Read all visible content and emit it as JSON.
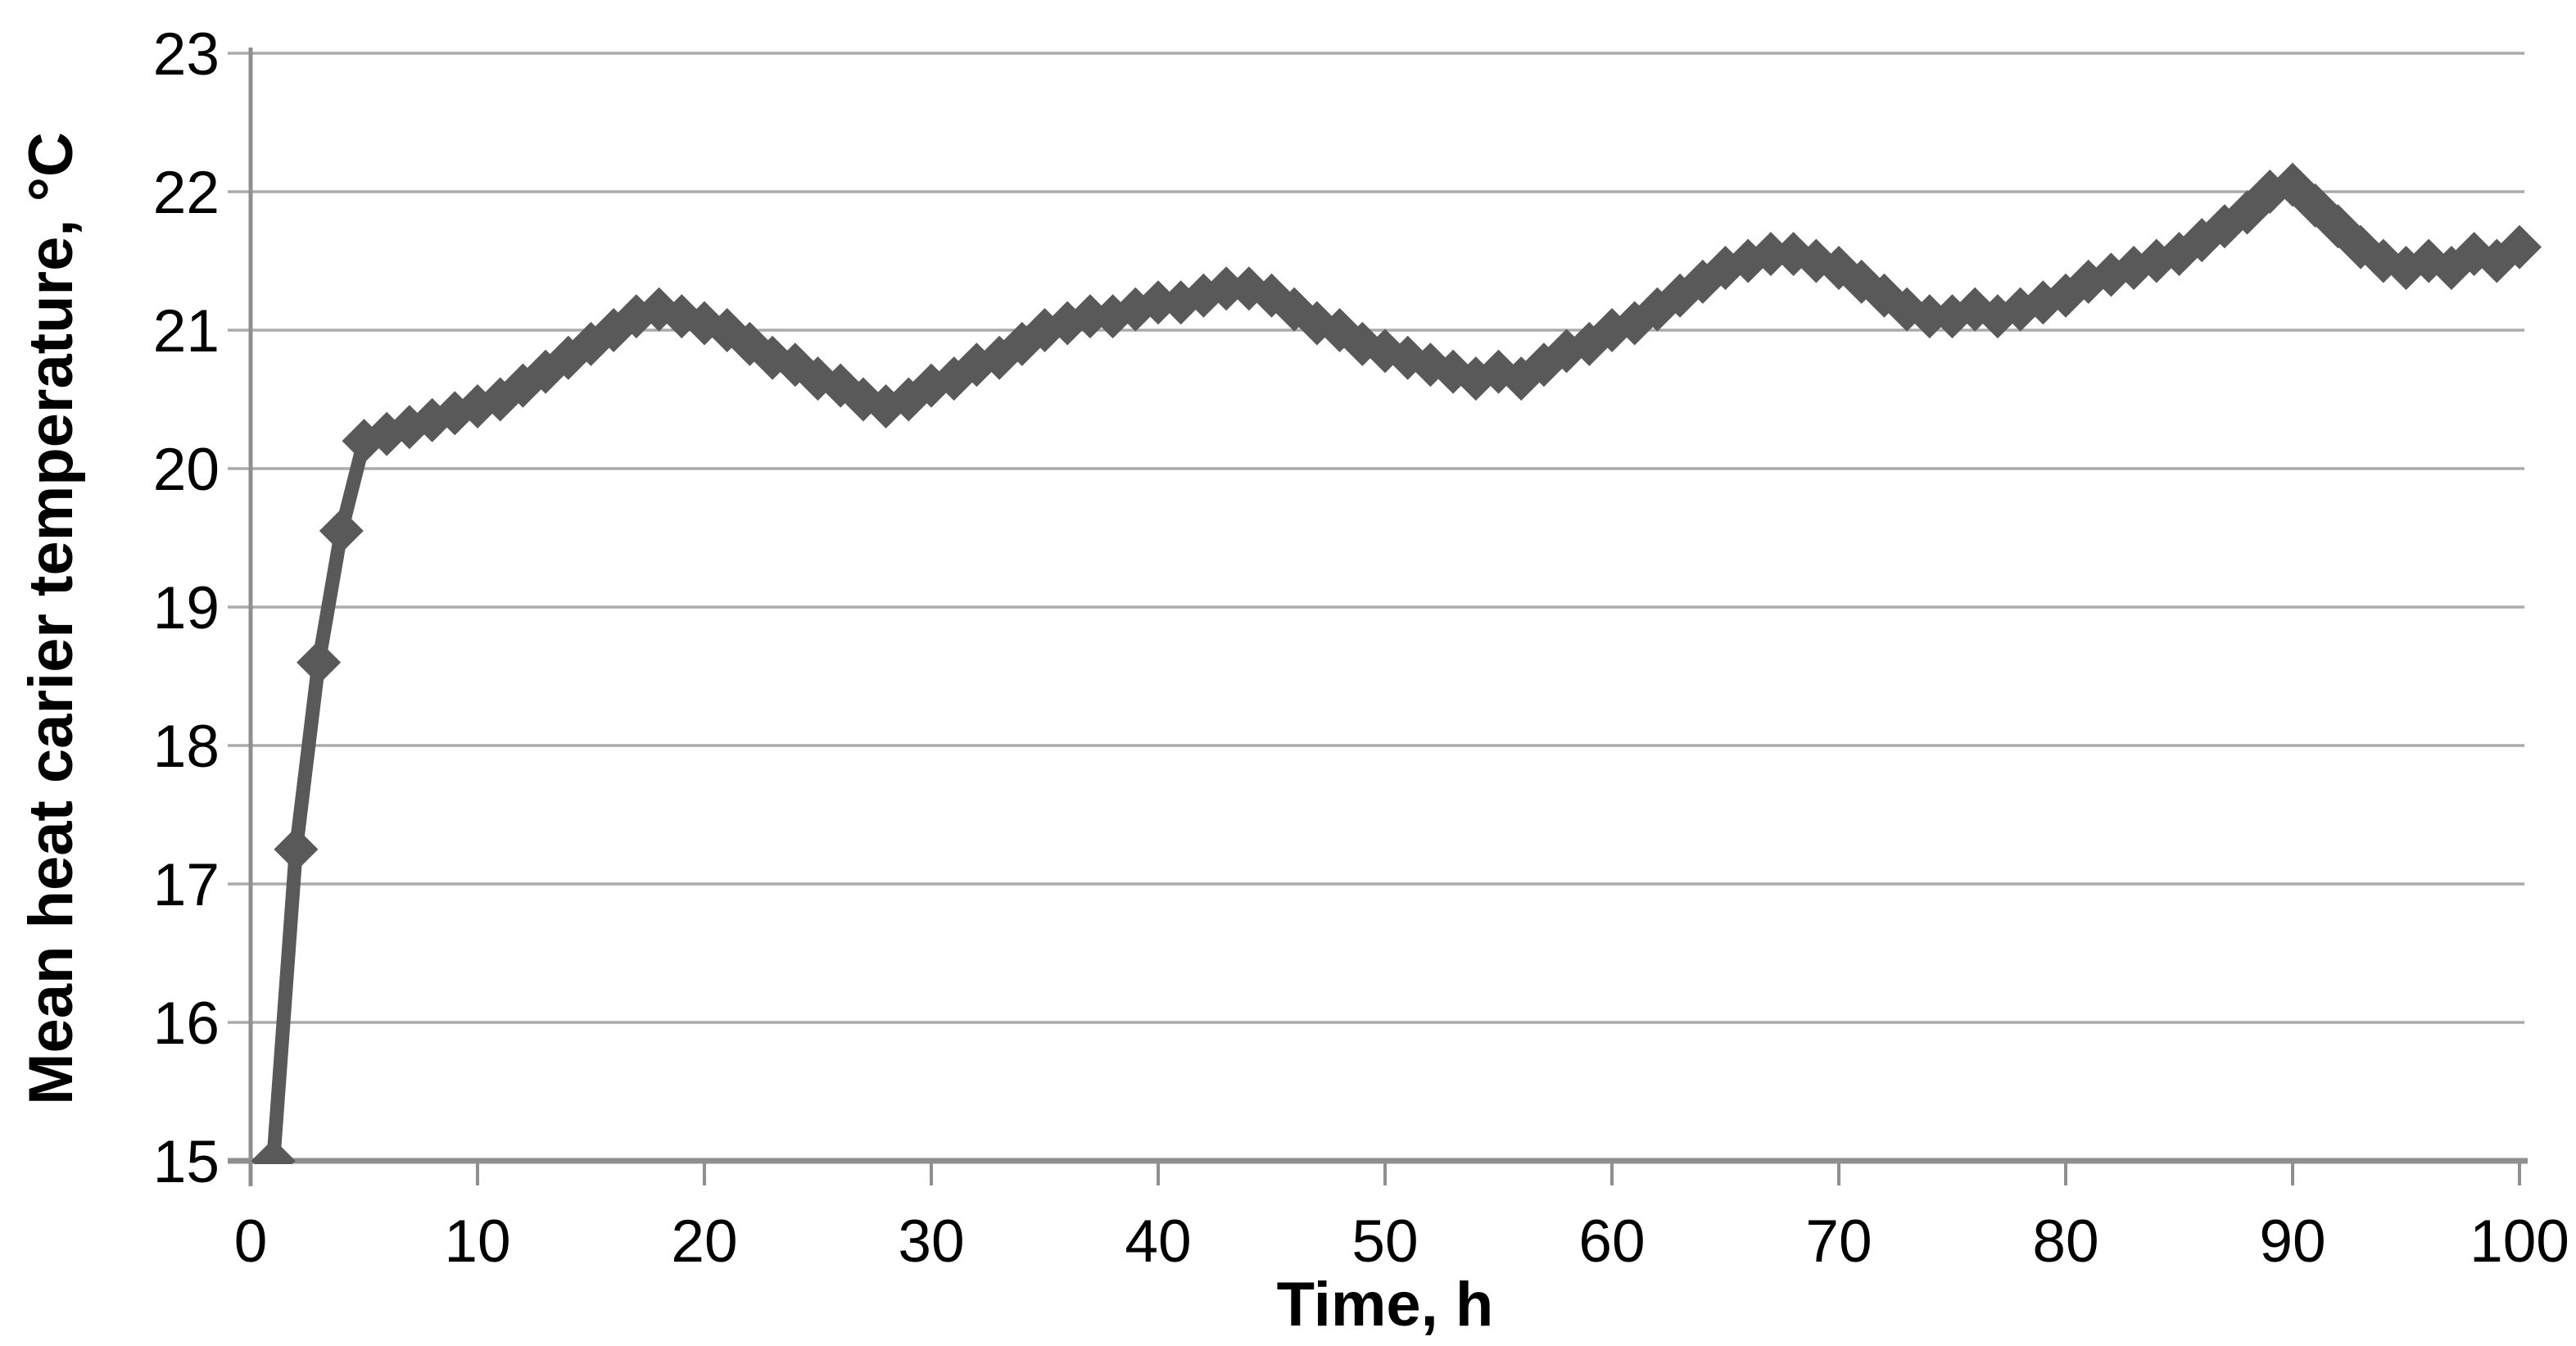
{
  "chart_data": {
    "type": "line",
    "title": "",
    "xlabel": "Time, h",
    "ylabel": "Mean heat carier temperature, °C",
    "xlim": [
      0,
      100
    ],
    "ylim": [
      15,
      23
    ],
    "x_ticks": [
      0,
      10,
      20,
      30,
      40,
      50,
      60,
      70,
      80,
      90,
      100
    ],
    "y_ticks": [
      15,
      16,
      17,
      18,
      19,
      20,
      21,
      22,
      23
    ],
    "grid": "horizontal-only",
    "legend_position": "none",
    "background_color": "#ffffff",
    "gridline_color": "#ababab",
    "axis_color": "#8f8f8f",
    "series": [
      {
        "name": "Mean heat carrier temperature",
        "marker": "diamond",
        "color": "#595959",
        "x": [
          1,
          2,
          3,
          4,
          5,
          6,
          7,
          8,
          9,
          10,
          11,
          12,
          13,
          14,
          15,
          16,
          17,
          18,
          19,
          20,
          21,
          22,
          23,
          24,
          25,
          26,
          27,
          28,
          29,
          30,
          31,
          32,
          33,
          34,
          35,
          36,
          37,
          38,
          39,
          40,
          41,
          42,
          43,
          44,
          45,
          46,
          47,
          48,
          49,
          50,
          51,
          52,
          53,
          54,
          55,
          56,
          57,
          58,
          59,
          60,
          61,
          62,
          63,
          64,
          65,
          66,
          67,
          68,
          69,
          70,
          71,
          72,
          73,
          74,
          75,
          76,
          77,
          78,
          79,
          80,
          81,
          82,
          83,
          84,
          85,
          86,
          87,
          88,
          89,
          90,
          91,
          92,
          93,
          94,
          95,
          96,
          97,
          98,
          99,
          100
        ],
        "y": [
          15.0,
          17.25,
          18.6,
          19.55,
          20.2,
          20.25,
          20.3,
          20.35,
          20.4,
          20.45,
          20.5,
          20.6,
          20.7,
          20.8,
          20.9,
          21.0,
          21.1,
          21.15,
          21.1,
          21.05,
          21.0,
          20.9,
          20.8,
          20.75,
          20.65,
          20.6,
          20.5,
          20.45,
          20.5,
          20.6,
          20.65,
          20.75,
          20.8,
          20.9,
          21.0,
          21.05,
          21.1,
          21.1,
          21.15,
          21.2,
          21.2,
          21.25,
          21.3,
          21.3,
          21.25,
          21.15,
          21.05,
          21.0,
          20.9,
          20.85,
          20.8,
          20.75,
          20.7,
          20.65,
          20.7,
          20.65,
          20.75,
          20.85,
          20.9,
          21.0,
          21.05,
          21.15,
          21.25,
          21.35,
          21.45,
          21.5,
          21.55,
          21.55,
          21.5,
          21.45,
          21.35,
          21.25,
          21.15,
          21.1,
          21.1,
          21.15,
          21.1,
          21.15,
          21.2,
          21.25,
          21.35,
          21.4,
          21.45,
          21.5,
          21.55,
          21.65,
          21.75,
          21.85,
          22.0,
          22.05,
          21.9,
          21.75,
          21.6,
          21.5,
          21.45,
          21.5,
          21.45,
          21.55,
          21.5,
          21.6
        ]
      }
    ]
  }
}
